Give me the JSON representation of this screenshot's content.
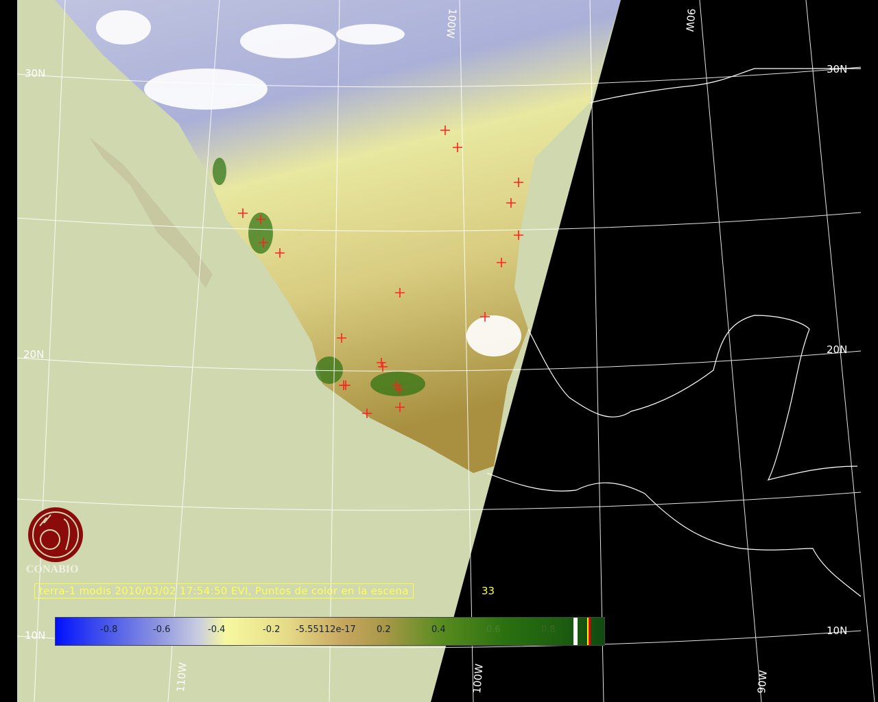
{
  "caption": {
    "text": "terra-1 modis 2010/03/02 17:54:50 EVI, Puntos de color en la escena",
    "count": "33"
  },
  "colorbar": {
    "ticks": [
      "-0.8",
      "-0.6",
      "-0.4",
      "-0.2",
      "-5.55112e-17",
      "0.2",
      "0.4",
      "0.6",
      "0.8"
    ]
  },
  "logo": {
    "text": "CONABIO"
  },
  "grid_labels": {
    "lat_30_left": "30N",
    "lat_30_right": "30N",
    "lat_20_left": "20N",
    "lat_20_right": "20N",
    "lat_10_left": "10N",
    "lat_10_right": "10N",
    "lon_110": "110W",
    "lon_100_top": "100W",
    "lon_100_bottom": "100W",
    "lon_90_top": "90W",
    "lon_90_bottom": "90W"
  },
  "colors": {
    "background": "#d0d8b0",
    "night": "#000000",
    "fire_marker": "#ff2020",
    "grid": "#ffffff",
    "caption": "#ffff50",
    "logo": "#8b0a0a"
  },
  "markers": {
    "icon": "red-cross-fire-point"
  }
}
